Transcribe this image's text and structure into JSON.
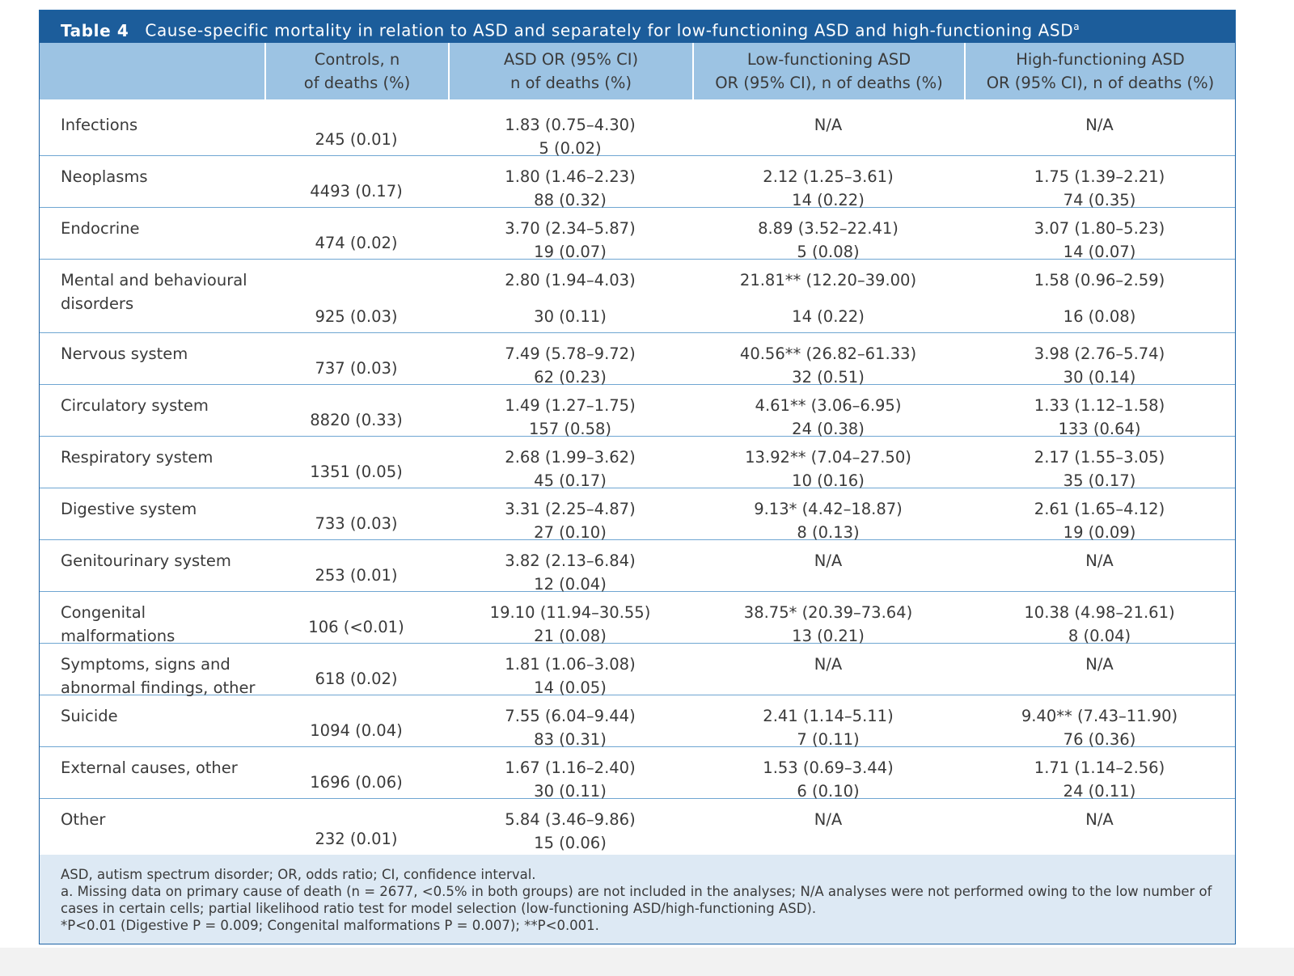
{
  "table": {
    "label": "Table 4",
    "title": "Cause-specific mortality in relation to ASD and separately for low-functioning ASD and high-functioning ASD",
    "title_note": "a",
    "header": [
      [],
      [
        "Controls, n",
        "of deaths (%)"
      ],
      [
        "ASD OR (95% CI)",
        "n of deaths (%)"
      ],
      [
        "Low-functioning ASD",
        "OR (95% CI), n of deaths (%)"
      ],
      [
        "High-functioning ASD",
        "OR (95% CI), n of deaths (%)"
      ]
    ],
    "rows": [
      {
        "label": [
          "Infections"
        ],
        "controls": "245 (0.01)",
        "asd": [
          "1.83 (0.75–4.30)",
          "5 (0.02)"
        ],
        "low": [
          "N/A"
        ],
        "high": [
          "N/A"
        ]
      },
      {
        "label": [
          "Neoplasms"
        ],
        "controls": "4493 (0.17)",
        "asd": [
          "1.80 (1.46–2.23)",
          "88 (0.32)"
        ],
        "low": [
          "2.12 (1.25–3.61)",
          "14 (0.22)"
        ],
        "high": [
          "1.75 (1.39–2.21)",
          "74 (0.35)"
        ]
      },
      {
        "label": [
          "Endocrine"
        ],
        "controls": "474 (0.02)",
        "asd": [
          "3.70 (2.34–5.87)",
          "19 (0.07)"
        ],
        "low": [
          "8.89 (3.52–22.41)",
          "5 (0.08)"
        ],
        "high": [
          "3.07 (1.80–5.23)",
          "14 (0.07)"
        ]
      },
      {
        "label": [
          "Mental and behavioural",
          "disorders"
        ],
        "controls": "925 (0.03)",
        "asd": [
          "2.80 (1.94–4.03)",
          "30 (0.11)"
        ],
        "low": [
          "21.81** (12.20–39.00)",
          "14 (0.22)"
        ],
        "high": [
          "1.58 (0.96–2.59)",
          "16 (0.08)"
        ]
      },
      {
        "label": [
          "Nervous system"
        ],
        "controls": "737 (0.03)",
        "asd": [
          "7.49 (5.78–9.72)",
          "62 (0.23)"
        ],
        "low": [
          "40.56** (26.82–61.33)",
          "32 (0.51)"
        ],
        "high": [
          "3.98 (2.76–5.74)",
          "30 (0.14)"
        ]
      },
      {
        "label": [
          "Circulatory system"
        ],
        "controls": "8820 (0.33)",
        "asd": [
          "1.49 (1.27–1.75)",
          "157 (0.58)"
        ],
        "low": [
          "4.61** (3.06–6.95)",
          "24 (0.38)"
        ],
        "high": [
          "1.33 (1.12–1.58)",
          "133 (0.64)"
        ]
      },
      {
        "label": [
          "Respiratory system"
        ],
        "controls": "1351 (0.05)",
        "asd": [
          "2.68 (1.99–3.62)",
          "45 (0.17)"
        ],
        "low": [
          "13.92** (7.04–27.50)",
          "10 (0.16)"
        ],
        "high": [
          "2.17 (1.55–3.05)",
          "35 (0.17)"
        ]
      },
      {
        "label": [
          "Digestive system"
        ],
        "controls": "733 (0.03)",
        "asd": [
          "3.31 (2.25–4.87)",
          "27 (0.10)"
        ],
        "low": [
          "9.13* (4.42–18.87)",
          "8 (0.13)"
        ],
        "high": [
          "2.61 (1.65–4.12)",
          "19 (0.09)"
        ]
      },
      {
        "label": [
          "Genitourinary system"
        ],
        "controls": "253 (0.01)",
        "asd": [
          "3.82 (2.13–6.84)",
          "12 (0.04)"
        ],
        "low": [
          "N/A"
        ],
        "high": [
          "N/A"
        ]
      },
      {
        "label": [
          "Congenital malformations"
        ],
        "controls": "106 (<0.01)",
        "asd": [
          "19.10 (11.94–30.55)",
          "21 (0.08)"
        ],
        "low": [
          "38.75* (20.39–73.64)",
          "13 (0.21)"
        ],
        "high": [
          "10.38 (4.98–21.61)",
          "8 (0.04)"
        ]
      },
      {
        "label": [
          "Symptoms, signs and",
          "abnormal findings, other"
        ],
        "controls": "618 (0.02)",
        "asd": [
          "1.81 (1.06–3.08)",
          "14 (0.05)"
        ],
        "low": [
          "N/A"
        ],
        "high": [
          "N/A"
        ]
      },
      {
        "label": [
          "Suicide"
        ],
        "controls": "1094 (0.04)",
        "asd": [
          "7.55 (6.04–9.44)",
          "83 (0.31)"
        ],
        "low": [
          "2.41 (1.14–5.11)",
          "7 (0.11)"
        ],
        "high": [
          "9.40** (7.43–11.90)",
          "76 (0.36)"
        ]
      },
      {
        "label": [
          "External causes, other"
        ],
        "controls": "1696 (0.06)",
        "asd": [
          "1.67 (1.16–2.40)",
          "30 (0.11)"
        ],
        "low": [
          "1.53 (0.69–3.44)",
          "6 (0.10)"
        ],
        "high": [
          "1.71 (1.14–2.56)",
          "24 (0.11)"
        ]
      },
      {
        "label": [
          "Other"
        ],
        "controls": "232 (0.01)",
        "asd": [
          "5.84 (3.46–9.86)",
          "15 (0.06)"
        ],
        "low": [
          "N/A"
        ],
        "high": [
          "N/A"
        ]
      }
    ],
    "footnotes": [
      "ASD, autism spectrum disorder; OR, odds ratio; CI, confidence interval.",
      "a. Missing data on primary cause of death (n = 2677, <0.5% in both groups) are not included in the analyses; N/A analyses were not performed owing to the low number of cases in certain cells; partial likelihood ratio test for model selection (low-functioning ASD/high-functioning ASD).",
      "*P<0.01 (Digestive P = 0.009; Congenital malformations P = 0.007); **P<0.001."
    ]
  }
}
